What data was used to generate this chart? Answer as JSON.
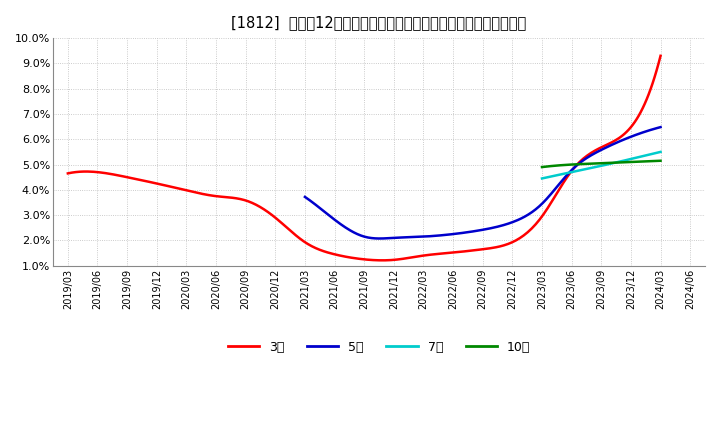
{
  "title": "[1812]  売上高12か月移動合計の対前年同期増減率の平均値の推移",
  "ylim": [
    0.01,
    0.1
  ],
  "yticks": [
    0.01,
    0.02,
    0.03,
    0.04,
    0.05,
    0.06,
    0.07,
    0.08,
    0.09,
    0.1
  ],
  "background_color": "#ffffff",
  "grid_color": "#bbbbbb",
  "series": {
    "3年": {
      "color": "#ff0000",
      "points": [
        [
          "2019/03",
          0.0465
        ],
        [
          "2019/06",
          0.047
        ],
        [
          "2019/09",
          0.045
        ],
        [
          "2019/12",
          0.0425
        ],
        [
          "2020/03",
          0.0398
        ],
        [
          "2020/06",
          0.0375
        ],
        [
          "2020/09",
          0.0358
        ],
        [
          "2020/12",
          0.029
        ],
        [
          "2021/03",
          0.0193
        ],
        [
          "2021/06",
          0.0145
        ],
        [
          "2021/09",
          0.0125
        ],
        [
          "2021/12",
          0.0123
        ],
        [
          "2022/03",
          0.014
        ],
        [
          "2022/06",
          0.0152
        ],
        [
          "2022/09",
          0.0165
        ],
        [
          "2022/12",
          0.0193
        ],
        [
          "2023/03",
          0.0295
        ],
        [
          "2023/06",
          0.0475
        ],
        [
          "2023/09",
          0.0568
        ],
        [
          "2023/12",
          0.0648
        ],
        [
          "2024/03",
          0.093
        ]
      ]
    },
    "5年": {
      "color": "#0000cc",
      "points": [
        [
          "2021/03",
          0.0372
        ],
        [
          "2021/06",
          0.0282
        ],
        [
          "2021/09",
          0.0215
        ],
        [
          "2021/12",
          0.021
        ],
        [
          "2022/03",
          0.0215
        ],
        [
          "2022/06",
          0.0225
        ],
        [
          "2022/09",
          0.0242
        ],
        [
          "2022/12",
          0.0272
        ],
        [
          "2023/03",
          0.0345
        ],
        [
          "2023/06",
          0.0478
        ],
        [
          "2023/09",
          0.0558
        ],
        [
          "2023/12",
          0.061
        ],
        [
          "2024/03",
          0.0648
        ]
      ]
    },
    "7年": {
      "color": "#00cccc",
      "points": [
        [
          "2023/03",
          0.0445
        ],
        [
          "2023/06",
          0.047
        ],
        [
          "2023/09",
          0.0495
        ],
        [
          "2023/12",
          0.0522
        ],
        [
          "2024/03",
          0.055
        ]
      ]
    },
    "10年": {
      "color": "#008800",
      "points": [
        [
          "2023/03",
          0.049
        ],
        [
          "2023/06",
          0.05
        ],
        [
          "2023/09",
          0.0505
        ],
        [
          "2023/12",
          0.051
        ],
        [
          "2024/03",
          0.0515
        ]
      ]
    }
  },
  "legend_labels": [
    "3年",
    "5年",
    "7年",
    "10年"
  ],
  "legend_colors": [
    "#ff0000",
    "#0000cc",
    "#00cccc",
    "#008800"
  ],
  "x_labels": [
    "2019/03",
    "2019/06",
    "2019/09",
    "2019/12",
    "2020/03",
    "2020/06",
    "2020/09",
    "2020/12",
    "2021/03",
    "2021/06",
    "2021/09",
    "2021/12",
    "2022/03",
    "2022/06",
    "2022/09",
    "2022/12",
    "2023/03",
    "2023/06",
    "2023/09",
    "2023/12",
    "2024/03",
    "2024/06"
  ]
}
